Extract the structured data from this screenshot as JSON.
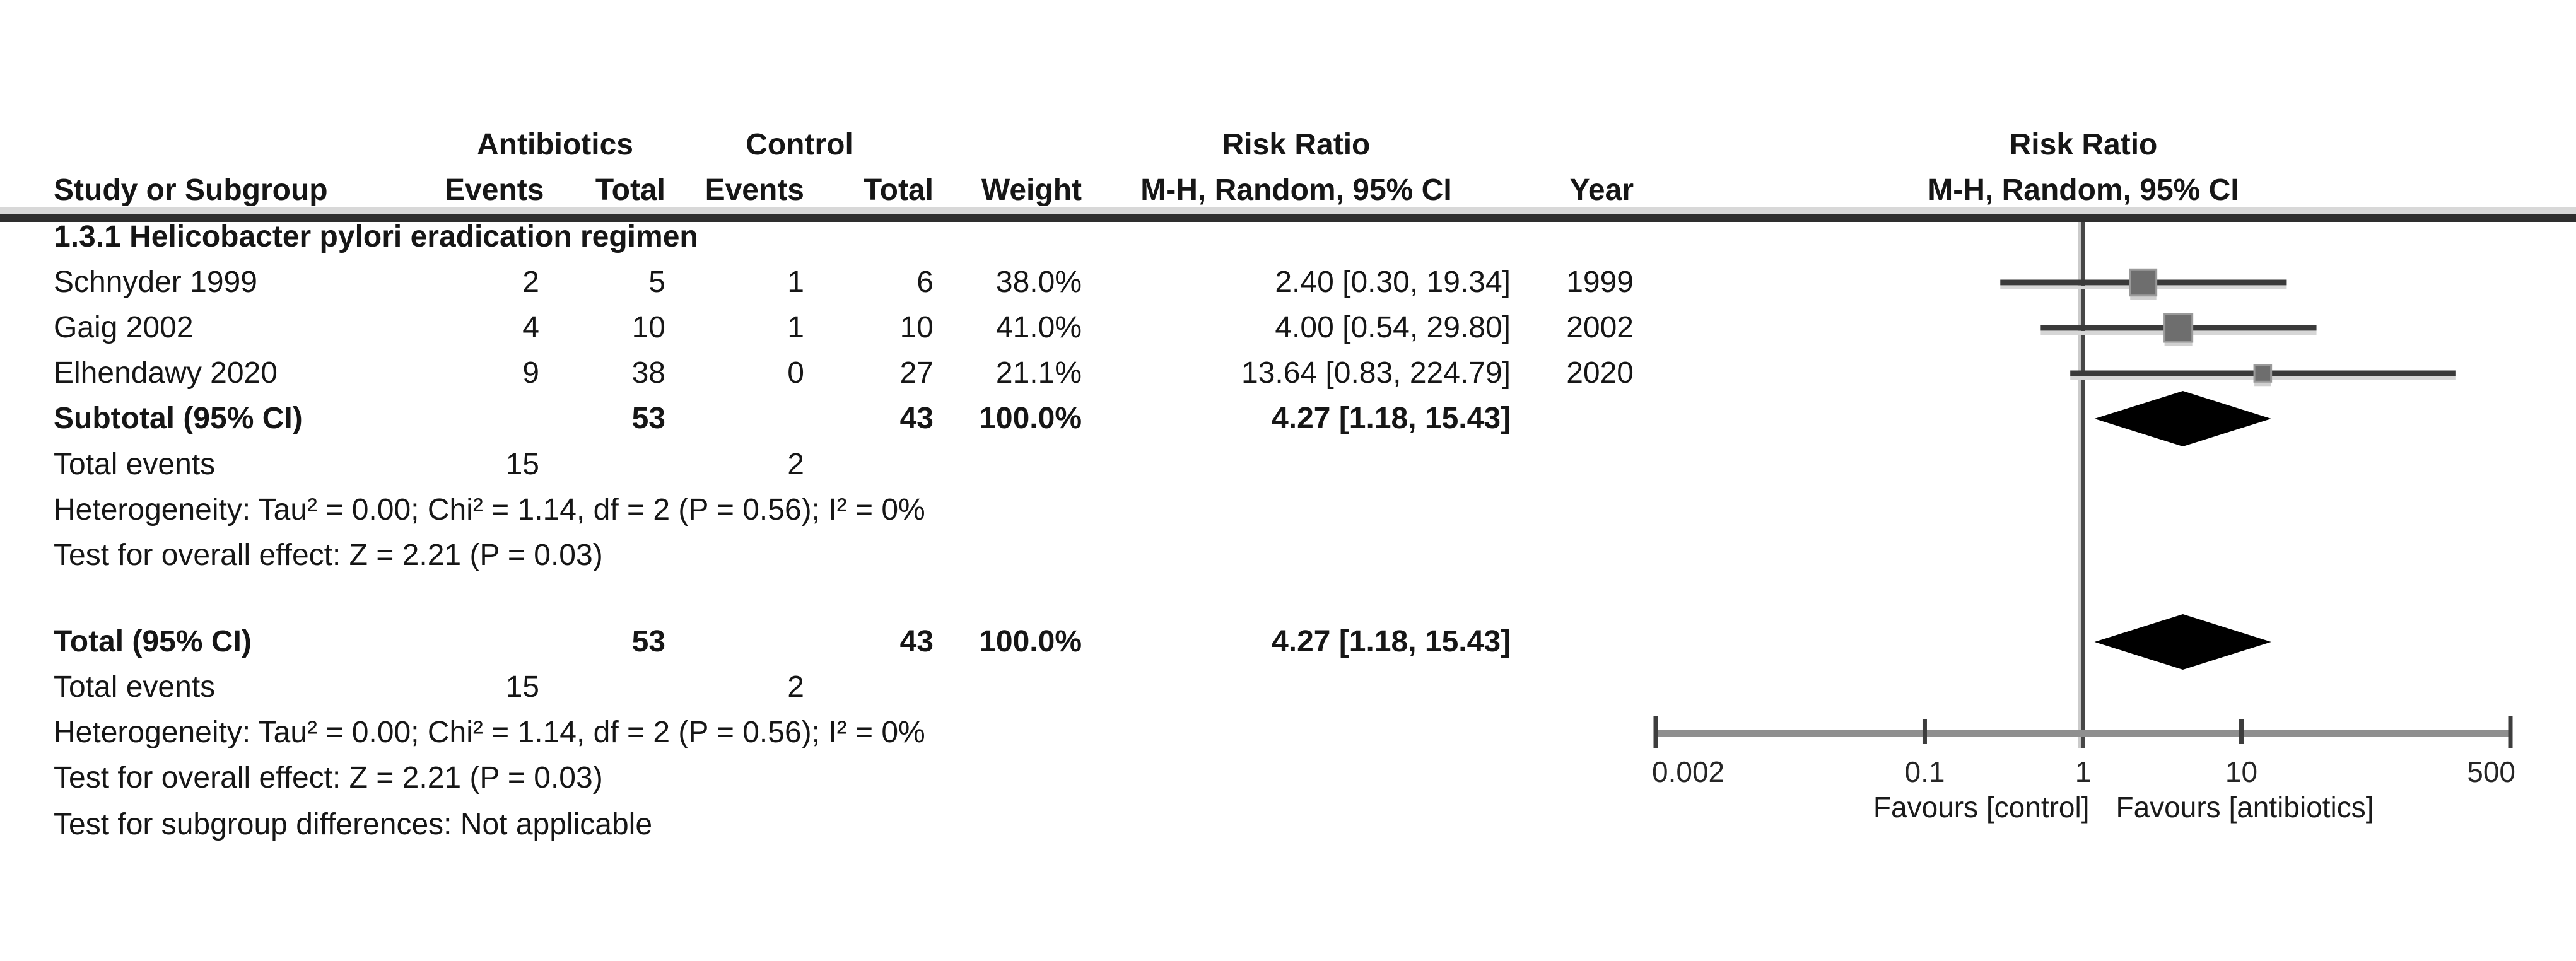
{
  "table": {
    "group_headers": {
      "antibiotics": "Antibiotics",
      "control": "Control",
      "risk_ratio": "Risk Ratio"
    },
    "col_headers": {
      "study": "Study or Subgroup",
      "events1": "Events",
      "total1": "Total",
      "events2": "Events",
      "total2": "Total",
      "weight": "Weight",
      "ci": "M-H, Random, 95% CI",
      "year": "Year"
    },
    "subgroup_title": "1.3.1 Helicobacter pylori eradication regimen",
    "studies": [
      {
        "name": "Schnyder 1999",
        "events1": "2",
        "total1": "5",
        "events2": "1",
        "total2": "6",
        "weight": "38.0%",
        "ci_text": "2.40 [0.30, 19.34]",
        "year": "1999"
      },
      {
        "name": "Gaig 2002",
        "events1": "4",
        "total1": "10",
        "events2": "1",
        "total2": "10",
        "weight": "41.0%",
        "ci_text": "4.00 [0.54, 29.80]",
        "year": "2002"
      },
      {
        "name": "Elhendawy 2020",
        "events1": "9",
        "total1": "38",
        "events2": "0",
        "total2": "27",
        "weight": "21.1%",
        "ci_text": "13.64 [0.83, 224.79]",
        "year": "2020"
      }
    ],
    "subtotal": {
      "label": "Subtotal (95% CI)",
      "total1": "53",
      "total2": "43",
      "weight": "100.0%",
      "ci_text": "4.27 [1.18, 15.43]"
    },
    "total_events_subgroup": {
      "label": "Total events",
      "antibiotics": "15",
      "control": "2"
    },
    "subgroup_stats": [
      "Heterogeneity: Tau² = 0.00; Chi² = 1.14, df = 2 (P = 0.56); I² = 0%",
      "Test for overall effect: Z = 2.21 (P = 0.03)"
    ],
    "total": {
      "label": "Total (95% CI)",
      "total1": "53",
      "total2": "43",
      "weight": "100.0%",
      "ci_text": "4.27 [1.18, 15.43]"
    },
    "total_events_overall": {
      "label": "Total events",
      "antibiotics": "15",
      "control": "2"
    },
    "overall_stats": [
      "Heterogeneity: Tau² = 0.00; Chi² = 1.14, df = 2 (P = 0.56); I² = 0%",
      "Test for overall effect: Z = 2.21 (P = 0.03)",
      "Test for subgroup differences: Not applicable"
    ]
  },
  "plot": {
    "header_line1": "Risk Ratio",
    "header_line2": "M-H, Random, 95% CI"
  },
  "chart_data": {
    "type": "forest",
    "effect_measure": "Risk Ratio",
    "method": "M-H, Random, 95% CI",
    "x_scale": "log",
    "x_range": [
      0.002,
      500
    ],
    "x_ticks": [
      0.002,
      0.1,
      1,
      10,
      500
    ],
    "x_tick_labels": [
      "0.002",
      "0.1",
      "1",
      "10",
      "500"
    ],
    "no_effect_value": 1,
    "axis_labels": {
      "left": "Favours [control]",
      "right": "Favours [antibiotics]"
    },
    "subgroup_label": "1.3.1 Helicobacter pylori eradication regimen",
    "studies": [
      {
        "label": "Schnyder 1999",
        "year": 1999,
        "rr": 2.4,
        "ci": [
          0.3,
          19.34
        ],
        "weight_pct": 38.0
      },
      {
        "label": "Gaig 2002",
        "year": 2002,
        "rr": 4.0,
        "ci": [
          0.54,
          29.8
        ],
        "weight_pct": 41.0
      },
      {
        "label": "Elhendawy 2020",
        "year": 2020,
        "rr": 13.64,
        "ci": [
          0.83,
          224.79
        ],
        "weight_pct": 21.1
      }
    ],
    "subtotal": {
      "label": "Subtotal (95% CI)",
      "rr": 4.27,
      "ci": [
        1.18,
        15.43
      ],
      "weight_pct": 100.0
    },
    "total": {
      "label": "Total (95% CI)",
      "rr": 4.27,
      "ci": [
        1.18,
        15.43
      ],
      "weight_pct": 100.0
    },
    "heterogeneity": {
      "tau2": 0.0,
      "chi2": 1.14,
      "df": 2,
      "p": 0.56,
      "i2_pct": 0
    },
    "overall_effect": {
      "z": 2.21,
      "p": 0.03
    }
  }
}
